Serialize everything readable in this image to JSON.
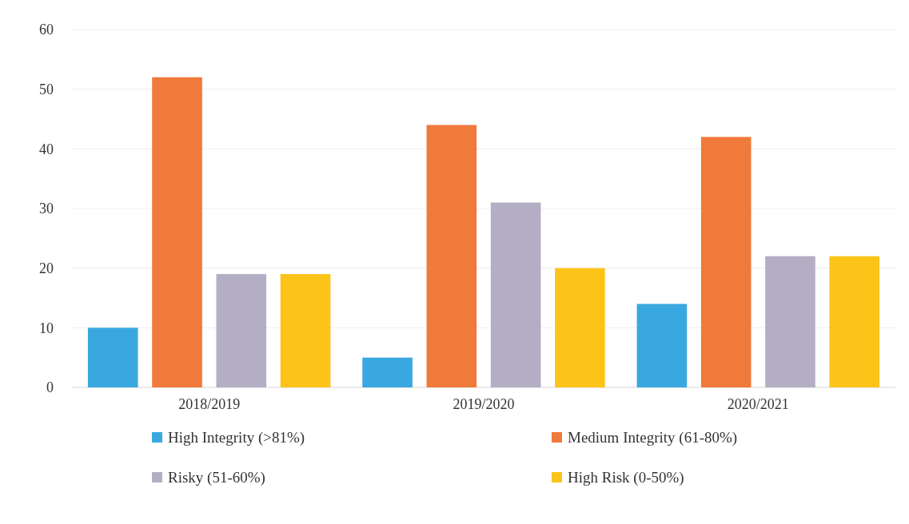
{
  "chart_data": {
    "type": "bar",
    "categories": [
      "2018/2019",
      "2019/2020",
      "2020/2021"
    ],
    "series": [
      {
        "name": "High Integrity (>81%)",
        "color": "#3aa8e0",
        "values": [
          10,
          5,
          14
        ]
      },
      {
        "name": "Medium Integrity (61-80%)",
        "color": "#f07a3a",
        "values": [
          52,
          44,
          42
        ]
      },
      {
        "name": "Risky (51-60%)",
        "color": "#b4aec4",
        "values": [
          19,
          31,
          22
        ]
      },
      {
        "name": "High Risk (0-50%)",
        "color": "#fcc419",
        "values": [
          19,
          20,
          22
        ]
      }
    ],
    "ylim": [
      0,
      60
    ],
    "yticks": [
      0,
      10,
      20,
      30,
      40,
      50,
      60
    ],
    "grid": "y",
    "legend": "bottom"
  }
}
